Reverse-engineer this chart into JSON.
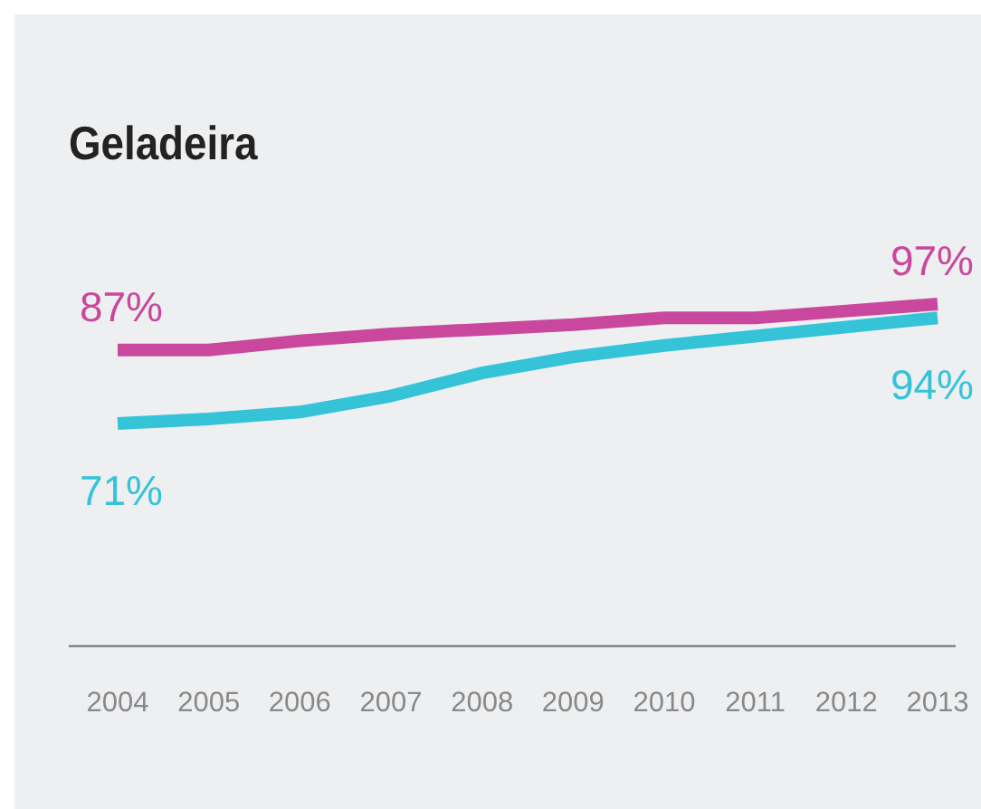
{
  "chart_data": {
    "type": "line",
    "title": "Geladeira",
    "categories": [
      "2004",
      "2005",
      "2006",
      "2007",
      "2008",
      "2009",
      "2010",
      "2011",
      "2012",
      "2013"
    ],
    "series": [
      {
        "color": "#c9489d",
        "values": [
          87,
          87,
          89,
          90.5,
          91.5,
          92.5,
          94,
          94,
          95.5,
          97
        ],
        "value_labels": [
          "87%",
          null,
          null,
          null,
          null,
          null,
          null,
          null,
          null,
          "97%"
        ]
      },
      {
        "color": "#35c3d8",
        "values": [
          71,
          72,
          73.5,
          77,
          82,
          85.5,
          88,
          90,
          92,
          94
        ],
        "value_labels": [
          "71%",
          null,
          null,
          null,
          null,
          null,
          null,
          null,
          null,
          "94%"
        ]
      }
    ],
    "marker": "none",
    "line_style": "solid"
  }
}
